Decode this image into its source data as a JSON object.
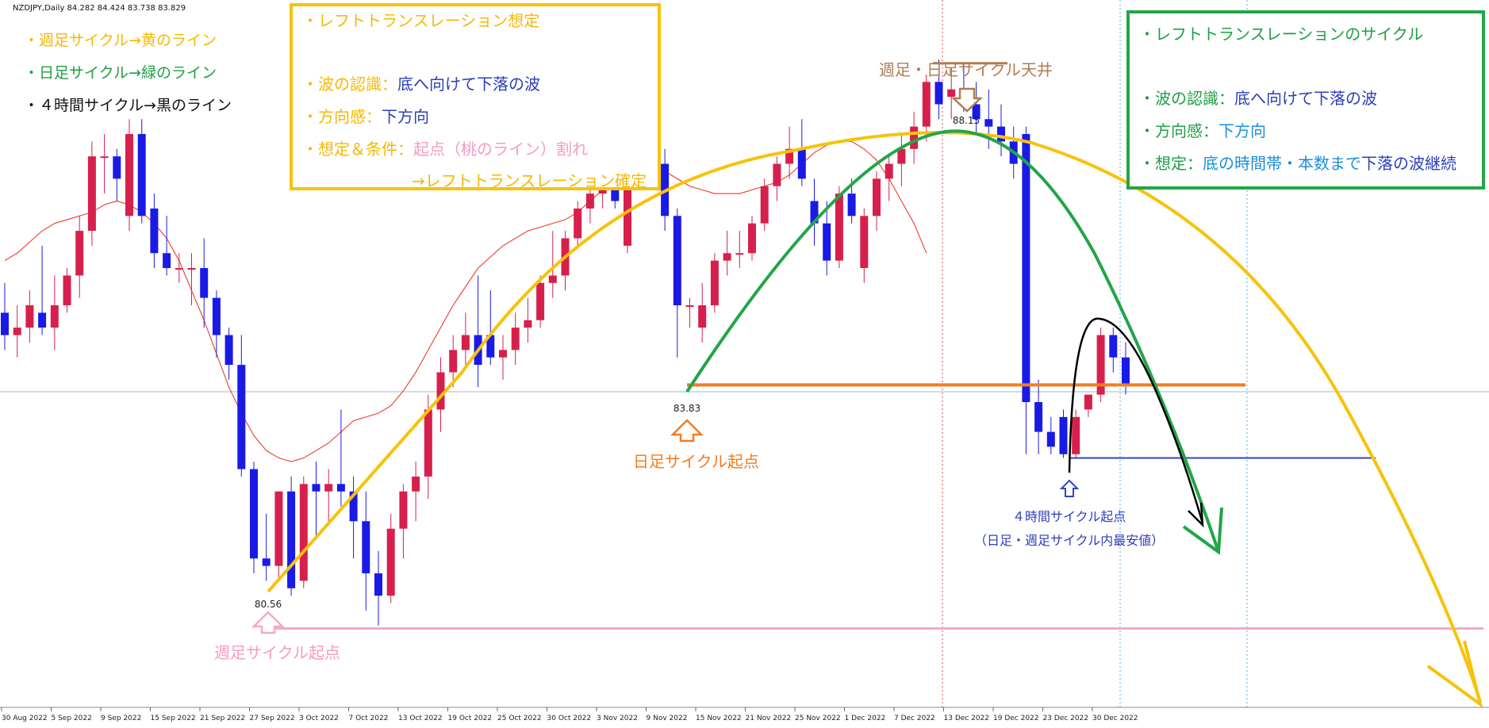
{
  "header": {
    "symbol_info": "NZDJPY,Daily  84.282 84.424 83.738 83.829"
  },
  "legend": [
    {
      "text": "・週足サイクル→黄のライン",
      "color": "#f5b800"
    },
    {
      "text": "・日足サイクル→緑のライン",
      "color": "#1e9f45"
    },
    {
      "text": "・４時間サイクル→黒のライン",
      "color": "#111111"
    }
  ],
  "left_box": {
    "title": "・レフトトランスレーション想定",
    "wave_label": "・波の認識：",
    "wave_value": "底へ向けて下落の波",
    "dir_label": "・方向感：",
    "dir_value": "下方向",
    "cond_label": "・想定＆条件：",
    "cond_value": "起点（桃のライン）割れ",
    "confirm": "→レフトトランスレーション確定"
  },
  "right_box": {
    "title": "・レフトトランスレーションのサイクル",
    "wave_label": "・波の認識：",
    "wave_value": "底へ向けて下落の波",
    "dir_label": "・方向感：",
    "dir_value": "下方向",
    "assume_label": "・想定：",
    "assume_value1": "底の時間帯・本数まで",
    "assume_value2": "下落の波継続"
  },
  "annotations": {
    "top_label": "週足・日足サイクル天井",
    "daily_origin": "日足サイクル起点",
    "weekly_origin": "週足サイクル起点",
    "h4_origin": "４時間サイクル起点",
    "h4_origin_note": "（日足・週足サイクル内最安値）",
    "price_high": "88.15",
    "price_daily_low": "83.83",
    "price_weekly_low": "80.56"
  },
  "colors": {
    "bull": "#d6204b",
    "bear": "#1a1ae6",
    "ma": "#f04a3a",
    "weekly": "#f7c20b",
    "daily": "#22a548",
    "h4": "#000000",
    "pink_line": "#f5a9c8",
    "orange_line": "#f57c1f",
    "blue_line": "#3246c0"
  },
  "chart_data": {
    "type": "candlestick",
    "x_ticks": [
      "30 Aug 2022",
      "5 Sep 2022",
      "9 Sep 2022",
      "15 Sep 2022",
      "21 Sep 2022",
      "27 Sep 2022",
      "3 Oct 2022",
      "7 Oct 2022",
      "13 Oct 2022",
      "19 Oct 2022",
      "25 Oct 2022",
      "30 Oct 2022",
      "3 Nov 2022",
      "9 Nov 2022",
      "15 Nov 2022",
      "21 Nov 2022",
      "25 Nov 2022",
      "1 Dec 2022",
      "7 Dec 2022",
      "13 Dec 2022",
      "19 Dec 2022",
      "23 Dec 2022",
      "30 Dec 2022"
    ],
    "y_range": [
      79.5,
      89.0
    ],
    "levels": {
      "weekly_origin": 80.56,
      "daily_origin": 83.83,
      "cycle_top": 88.15,
      "h4_origin": 82.85,
      "horizontal_ref": 83.83
    },
    "candles": [
      {
        "o": 84.8,
        "h": 85.2,
        "l": 84.3,
        "c": 84.5
      },
      {
        "o": 84.5,
        "h": 84.9,
        "l": 84.2,
        "c": 84.6
      },
      {
        "o": 84.6,
        "h": 85.1,
        "l": 84.4,
        "c": 84.9
      },
      {
        "o": 84.8,
        "h": 85.7,
        "l": 84.5,
        "c": 84.6
      },
      {
        "o": 84.6,
        "h": 85.3,
        "l": 84.3,
        "c": 84.9
      },
      {
        "o": 84.9,
        "h": 85.4,
        "l": 84.8,
        "c": 85.3
      },
      {
        "o": 85.3,
        "h": 86.1,
        "l": 85.0,
        "c": 85.9
      },
      {
        "o": 85.9,
        "h": 87.1,
        "l": 85.7,
        "c": 86.9
      },
      {
        "o": 86.9,
        "h": 87.2,
        "l": 86.4,
        "c": 86.9
      },
      {
        "o": 86.9,
        "h": 87.0,
        "l": 86.3,
        "c": 86.6
      },
      {
        "o": 86.1,
        "h": 87.4,
        "l": 85.9,
        "c": 87.2
      },
      {
        "o": 87.2,
        "h": 87.4,
        "l": 86.0,
        "c": 86.1
      },
      {
        "o": 86.2,
        "h": 86.4,
        "l": 85.4,
        "c": 85.6
      },
      {
        "o": 85.6,
        "h": 86.1,
        "l": 85.3,
        "c": 85.4
      },
      {
        "o": 85.4,
        "h": 85.6,
        "l": 85.2,
        "c": 85.4
      },
      {
        "o": 85.4,
        "h": 85.6,
        "l": 84.9,
        "c": 85.4
      },
      {
        "o": 85.4,
        "h": 85.8,
        "l": 84.6,
        "c": 85.0
      },
      {
        "o": 85.0,
        "h": 85.1,
        "l": 84.2,
        "c": 84.5
      },
      {
        "o": 84.5,
        "h": 84.6,
        "l": 83.9,
        "c": 84.1
      },
      {
        "o": 84.1,
        "h": 84.5,
        "l": 82.6,
        "c": 82.7
      },
      {
        "o": 82.7,
        "h": 82.8,
        "l": 81.3,
        "c": 81.5
      },
      {
        "o": 81.5,
        "h": 82.1,
        "l": 81.2,
        "c": 81.4
      },
      {
        "o": 81.4,
        "h": 82.4,
        "l": 81.2,
        "c": 82.4
      },
      {
        "o": 82.4,
        "h": 82.6,
        "l": 81.0,
        "c": 81.1
      },
      {
        "o": 81.2,
        "h": 82.6,
        "l": 81.1,
        "c": 82.5
      },
      {
        "o": 82.5,
        "h": 82.8,
        "l": 81.8,
        "c": 82.4
      },
      {
        "o": 82.4,
        "h": 82.7,
        "l": 82.0,
        "c": 82.5
      },
      {
        "o": 82.5,
        "h": 83.5,
        "l": 82.2,
        "c": 82.4
      },
      {
        "o": 82.4,
        "h": 82.6,
        "l": 81.5,
        "c": 82.0
      },
      {
        "o": 82.0,
        "h": 82.4,
        "l": 80.8,
        "c": 81.3
      },
      {
        "o": 81.3,
        "h": 81.6,
        "l": 80.6,
        "c": 81.0
      },
      {
        "o": 81.0,
        "h": 82.1,
        "l": 80.9,
        "c": 81.9
      },
      {
        "o": 81.9,
        "h": 82.5,
        "l": 81.5,
        "c": 82.4
      },
      {
        "o": 82.4,
        "h": 82.8,
        "l": 82.0,
        "c": 82.6
      },
      {
        "o": 82.6,
        "h": 83.7,
        "l": 82.3,
        "c": 83.5
      },
      {
        "o": 83.5,
        "h": 84.2,
        "l": 83.2,
        "c": 84.0
      },
      {
        "o": 84.0,
        "h": 84.5,
        "l": 83.8,
        "c": 84.3
      },
      {
        "o": 84.3,
        "h": 84.8,
        "l": 84.1,
        "c": 84.5
      },
      {
        "o": 84.5,
        "h": 85.3,
        "l": 83.8,
        "c": 84.1
      },
      {
        "o": 84.5,
        "h": 85.1,
        "l": 84.1,
        "c": 84.2
      },
      {
        "o": 84.2,
        "h": 84.5,
        "l": 83.9,
        "c": 84.3
      },
      {
        "o": 84.3,
        "h": 84.8,
        "l": 84.1,
        "c": 84.6
      },
      {
        "o": 84.6,
        "h": 85.0,
        "l": 84.4,
        "c": 84.7
      },
      {
        "o": 84.7,
        "h": 85.3,
        "l": 84.6,
        "c": 85.2
      },
      {
        "o": 85.2,
        "h": 85.9,
        "l": 85.0,
        "c": 85.3
      },
      {
        "o": 85.3,
        "h": 85.9,
        "l": 85.1,
        "c": 85.8
      },
      {
        "o": 85.8,
        "h": 86.3,
        "l": 85.7,
        "c": 86.2
      },
      {
        "o": 86.2,
        "h": 86.5,
        "l": 86.0,
        "c": 86.4
      },
      {
        "o": 86.4,
        "h": 86.9,
        "l": 86.2,
        "c": 86.6
      },
      {
        "o": 86.6,
        "h": 87.1,
        "l": 86.2,
        "c": 86.3
      },
      {
        "o": 85.7,
        "h": 86.8,
        "l": 85.6,
        "c": 86.7
      },
      {
        "o": 86.7,
        "h": 87.2,
        "l": 86.5,
        "c": 87.0
      },
      {
        "o": 87.0,
        "h": 87.3,
        "l": 86.6,
        "c": 86.8
      },
      {
        "o": 86.8,
        "h": 87.0,
        "l": 85.9,
        "c": 86.1
      },
      {
        "o": 86.1,
        "h": 86.2,
        "l": 84.2,
        "c": 84.9
      },
      {
        "o": 84.9,
        "h": 85.0,
        "l": 84.6,
        "c": 84.9
      },
      {
        "o": 84.6,
        "h": 85.2,
        "l": 84.4,
        "c": 84.9
      },
      {
        "o": 84.9,
        "h": 85.6,
        "l": 84.8,
        "c": 85.5
      },
      {
        "o": 85.5,
        "h": 85.9,
        "l": 85.3,
        "c": 85.6
      },
      {
        "o": 85.6,
        "h": 85.9,
        "l": 85.4,
        "c": 85.6
      },
      {
        "o": 85.6,
        "h": 86.1,
        "l": 85.5,
        "c": 86.0
      },
      {
        "o": 86.0,
        "h": 86.6,
        "l": 85.9,
        "c": 86.5
      },
      {
        "o": 86.5,
        "h": 86.9,
        "l": 86.3,
        "c": 86.8
      },
      {
        "o": 86.8,
        "h": 87.3,
        "l": 86.6,
        "c": 87.0
      },
      {
        "o": 87.0,
        "h": 87.4,
        "l": 86.5,
        "c": 86.6
      },
      {
        "o": 86.3,
        "h": 86.6,
        "l": 85.7,
        "c": 86.0
      },
      {
        "o": 86.0,
        "h": 86.3,
        "l": 85.3,
        "c": 85.5
      },
      {
        "o": 85.5,
        "h": 86.5,
        "l": 85.4,
        "c": 86.4
      },
      {
        "o": 86.4,
        "h": 86.6,
        "l": 86.0,
        "c": 86.1
      },
      {
        "o": 85.4,
        "h": 86.2,
        "l": 85.2,
        "c": 86.1
      },
      {
        "o": 86.1,
        "h": 86.7,
        "l": 85.9,
        "c": 86.6
      },
      {
        "o": 86.6,
        "h": 86.9,
        "l": 86.3,
        "c": 86.8
      },
      {
        "o": 86.8,
        "h": 87.2,
        "l": 86.5,
        "c": 87.0
      },
      {
        "o": 87.0,
        "h": 87.5,
        "l": 86.8,
        "c": 87.3
      },
      {
        "o": 87.3,
        "h": 88.0,
        "l": 87.1,
        "c": 87.9
      },
      {
        "o": 87.9,
        "h": 88.2,
        "l": 87.4,
        "c": 87.6
      },
      {
        "o": 87.7,
        "h": 88.1,
        "l": 87.4,
        "c": 87.8
      },
      {
        "o": 87.8,
        "h": 88.15,
        "l": 87.5,
        "c": 87.6
      },
      {
        "o": 87.6,
        "h": 87.9,
        "l": 87.2,
        "c": 87.4
      },
      {
        "o": 87.4,
        "h": 87.8,
        "l": 87.0,
        "c": 87.3
      },
      {
        "o": 87.3,
        "h": 87.6,
        "l": 86.9,
        "c": 87.1
      },
      {
        "o": 87.1,
        "h": 87.3,
        "l": 86.6,
        "c": 86.8
      },
      {
        "o": 87.2,
        "h": 87.3,
        "l": 82.9,
        "c": 83.6
      },
      {
        "o": 83.6,
        "h": 83.9,
        "l": 82.9,
        "c": 83.2
      },
      {
        "o": 83.2,
        "h": 83.4,
        "l": 82.9,
        "c": 83.0
      },
      {
        "o": 83.4,
        "h": 83.5,
        "l": 82.85,
        "c": 82.9
      },
      {
        "o": 82.9,
        "h": 83.5,
        "l": 82.85,
        "c": 83.4
      },
      {
        "o": 83.5,
        "h": 83.7,
        "l": 83.4,
        "c": 83.7
      },
      {
        "o": 83.7,
        "h": 84.6,
        "l": 83.6,
        "c": 84.5
      },
      {
        "o": 84.5,
        "h": 84.6,
        "l": 84.0,
        "c": 84.2
      },
      {
        "o": 84.2,
        "h": 84.4,
        "l": 83.7,
        "c": 83.83
      }
    ],
    "ma_series": [
      85.5,
      85.6,
      85.75,
      85.9,
      86.0,
      86.05,
      86.1,
      86.15,
      86.25,
      86.3,
      86.25,
      86.15,
      86.0,
      85.8,
      85.5,
      85.1,
      84.7,
      84.25,
      83.8,
      83.45,
      83.15,
      82.95,
      82.85,
      82.8,
      82.85,
      82.95,
      83.05,
      83.2,
      83.35,
      83.4,
      83.45,
      83.55,
      83.75,
      84.0,
      84.3,
      84.6,
      84.9,
      85.15,
      85.4,
      85.55,
      85.7,
      85.8,
      85.9,
      85.95,
      86.0,
      86.05,
      86.15,
      86.3,
      86.45,
      86.6,
      86.7,
      86.75,
      86.75,
      86.7,
      86.6,
      86.5,
      86.45,
      86.4,
      86.4,
      86.4,
      86.45,
      86.5,
      86.55,
      86.65,
      86.8,
      86.95,
      87.05,
      87.1,
      87.1,
      87.0,
      86.85,
      86.6,
      86.3,
      86.0,
      85.6
    ]
  }
}
